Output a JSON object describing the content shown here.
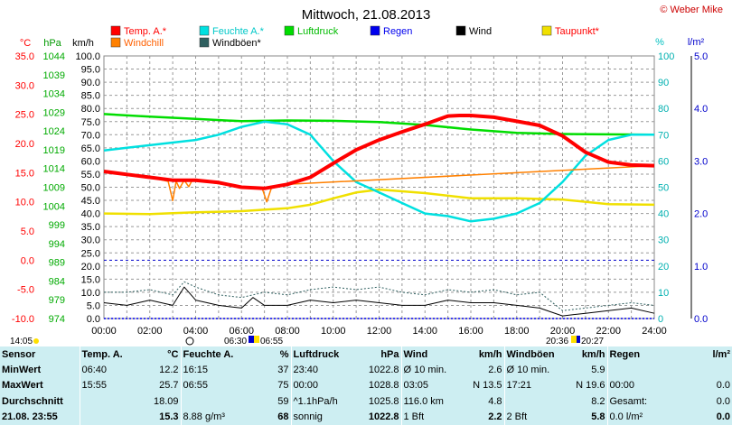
{
  "header": {
    "title": "Mittwoch, 21.08.2013",
    "credit": "© Weber Mike"
  },
  "legend": [
    {
      "label": "Temp. A.*",
      "color": "#ff0000"
    },
    {
      "label": "Windchill",
      "color": "#ff8000"
    },
    {
      "label": "Feuchte A.*",
      "color": "#00e0e0"
    },
    {
      "label": "Windböen*",
      "color": "#306060"
    },
    {
      "label": "Luftdruck",
      "color": "#00dd00"
    },
    {
      "label": "Regen",
      "color": "#0000ee"
    },
    {
      "label": "Wind",
      "color": "#000000"
    },
    {
      "label": "Taupunkt*",
      "color": "#f0e000"
    }
  ],
  "axes": {
    "temp_unit": "°C",
    "hpa_unit": "hPa",
    "kmh_unit": "km/h",
    "pct_unit": "%",
    "rain_unit": "l/m²",
    "temp_ticks": [
      "35.0",
      "30.0",
      "25.0",
      "20.0",
      "15.0",
      "10.0",
      "5.0",
      "0.0",
      "-5.0",
      "-10.0"
    ],
    "hpa_ticks": [
      "1044",
      "1039",
      "1034",
      "1029",
      "1024",
      "1019",
      "1014",
      "1009",
      "1004",
      "999",
      "994",
      "989",
      "984",
      "979",
      "974"
    ],
    "kmh_ticks": [
      "100.0",
      "95.0",
      "90.0",
      "85.0",
      "80.0",
      "75.0",
      "70.0",
      "65.0",
      "60.0",
      "55.0",
      "50.0",
      "45.0",
      "40.0",
      "35.0",
      "30.0",
      "25.0",
      "20.0",
      "15.0",
      "10.0",
      "5.0",
      "0.0"
    ],
    "pct_ticks": [
      "100",
      "90",
      "80",
      "70",
      "60",
      "50",
      "40",
      "30",
      "20",
      "10",
      "0"
    ],
    "rain_ticks": [
      "5.0",
      "4.0",
      "3.0",
      "2.0",
      "1.0",
      "0.0"
    ],
    "x_ticks": [
      "00:00",
      "02:00",
      "04:00",
      "06:00",
      "08:00",
      "10:00",
      "12:00",
      "14:00",
      "16:00",
      "18:00",
      "20:00",
      "22:00",
      "24:00"
    ]
  },
  "sun": {
    "sunrise_left": "14:05",
    "sunrise": "06:30",
    "sunset": "06:55",
    "sunrise2": "20:36",
    "sunset2": "20:27"
  },
  "chart_data": {
    "type": "line",
    "x_unit": "hour",
    "xlim": [
      0,
      24
    ],
    "ylim": [
      0,
      100
    ],
    "ylabel": "km/h",
    "grid": true,
    "series": [
      {
        "name": "Temp. A.*",
        "unit": "°C",
        "color": "#ff0000",
        "x": [
          0,
          1,
          2,
          3,
          3.5,
          4,
          5,
          6,
          7,
          8,
          9,
          10,
          11,
          12,
          13,
          14,
          15,
          15.5,
          16,
          17,
          18,
          19,
          20,
          21,
          22,
          23,
          24
        ],
        "values": [
          15.2,
          14.7,
          14.2,
          13.7,
          13.7,
          13.7,
          13.3,
          12.5,
          12.3,
          13.0,
          14.2,
          16.6,
          18.9,
          20.6,
          22.0,
          23.3,
          24.7,
          24.8,
          24.8,
          24.5,
          23.8,
          23.1,
          21.3,
          18.5,
          16.8,
          16.3,
          16.2
        ]
      },
      {
        "name": "Windchill",
        "unit": "°C",
        "color": "#ff8000",
        "x": [
          0,
          2,
          2.8,
          3,
          3.15,
          3.3,
          3.5,
          3.7,
          3.85,
          4,
          6,
          6.9,
          7.1,
          7.3,
          8,
          24
        ],
        "values": [
          15.2,
          14.2,
          13.5,
          10.2,
          13.5,
          12.3,
          13.7,
          12.6,
          13.7,
          13.7,
          12.5,
          12.3,
          10.0,
          12.3,
          13.0,
          16.2
        ]
      },
      {
        "name": "Feuchte A.*",
        "unit": "%",
        "color": "#00e0e0",
        "x": [
          0,
          1,
          2,
          3,
          4,
          5,
          6,
          7,
          8,
          9,
          10,
          11,
          12,
          13,
          14,
          15,
          16,
          17,
          18,
          19,
          20,
          21,
          22,
          23,
          24
        ],
        "values": [
          64,
          65,
          66,
          67,
          68,
          70,
          73,
          75,
          74,
          70,
          60,
          52,
          48,
          44,
          40,
          39,
          37,
          38,
          40,
          44,
          52,
          62,
          68,
          70,
          70
        ]
      },
      {
        "name": "Luftdruck",
        "unit": "hPa",
        "color": "#00dd00",
        "x": [
          0,
          2,
          4,
          6,
          8,
          10,
          12,
          14,
          16,
          18,
          20,
          22,
          24
        ],
        "values": [
          1028.5,
          1027.8,
          1027.2,
          1026.6,
          1026.8,
          1026.7,
          1026.4,
          1025.6,
          1024.4,
          1023.5,
          1023.2,
          1023.1,
          1023.0
        ]
      },
      {
        "name": "Taupunkt*",
        "unit": "°C",
        "color": "#f0e000",
        "x": [
          0,
          2,
          4,
          6,
          8,
          9,
          10,
          11,
          12,
          13,
          14,
          16,
          18,
          20,
          22,
          24
        ],
        "values": [
          8.0,
          7.9,
          8.2,
          8.4,
          8.9,
          9.5,
          10.6,
          11.6,
          12.1,
          11.8,
          11.5,
          10.6,
          10.6,
          10.4,
          9.6,
          9.5
        ]
      },
      {
        "name": "Regen",
        "unit": "l/m²",
        "color": "#0000ee",
        "x": [
          0,
          24
        ],
        "values": [
          0.0,
          0.0
        ]
      },
      {
        "name": "Wind",
        "unit": "km/h",
        "color": "#000000",
        "x": [
          0,
          1,
          2,
          3,
          3.5,
          4,
          5,
          6,
          6.5,
          7,
          8,
          9,
          10,
          11,
          12,
          13,
          14,
          15,
          16,
          17,
          18,
          19,
          20,
          21,
          22,
          23,
          24
        ],
        "values": [
          6,
          5,
          7,
          5,
          12,
          7,
          5,
          4,
          8,
          5,
          5,
          7,
          6,
          7,
          6,
          5,
          5,
          7,
          6,
          6,
          5,
          4,
          1,
          2,
          3,
          4,
          2
        ]
      },
      {
        "name": "Windböen*",
        "unit": "km/h",
        "color": "#306060",
        "x": [
          0,
          1,
          2,
          3,
          3.5,
          4,
          5,
          6,
          7,
          8,
          9,
          10,
          11,
          12,
          13,
          14,
          15,
          16,
          17,
          18,
          19,
          20,
          21,
          22,
          23,
          24
        ],
        "values": [
          10,
          10,
          11,
          9,
          14,
          12,
          9,
          8,
          10,
          9,
          11,
          12,
          11,
          12,
          10,
          9,
          11,
          10,
          11,
          9,
          10,
          3,
          4,
          5,
          6,
          5
        ]
      }
    ]
  },
  "table": {
    "header": [
      "Sensor",
      "Temp. A.",
      "°C",
      "Feuchte A.",
      "%",
      "Luftdruck",
      "hPa",
      "Wind",
      "km/h",
      "Windböen",
      "km/h",
      "Regen",
      "l/m²"
    ],
    "rows": [
      [
        "MinWert",
        "06:40",
        "12.2",
        "16:15",
        "37",
        "23:40",
        "1022.8",
        "Ø 10 min.",
        "2.6",
        "Ø 10 min.",
        "5.9",
        "",
        ""
      ],
      [
        "MaxWert",
        "15:55",
        "25.7",
        "06:55",
        "75",
        "00:00",
        "1028.8",
        "03:05",
        "N 13.5",
        "17:21",
        "N 19.6",
        "00:00",
        "0.0"
      ],
      [
        "Durchschnitt",
        "",
        "18.09",
        "",
        "59",
        "^1.1hPa/h",
        "1025.8",
        "116.0 km",
        "4.8",
        "",
        "8.2",
        "Gesamt:",
        "0.0"
      ],
      [
        "21.08.  23:55",
        "",
        "15.3",
        "8.88 g/m³",
        "68",
        "sonnig",
        "1022.8",
        "1 Bft",
        "2.2",
        "2 Bft",
        "5.8",
        "0.0 l/m²",
        "0.0"
      ]
    ]
  }
}
